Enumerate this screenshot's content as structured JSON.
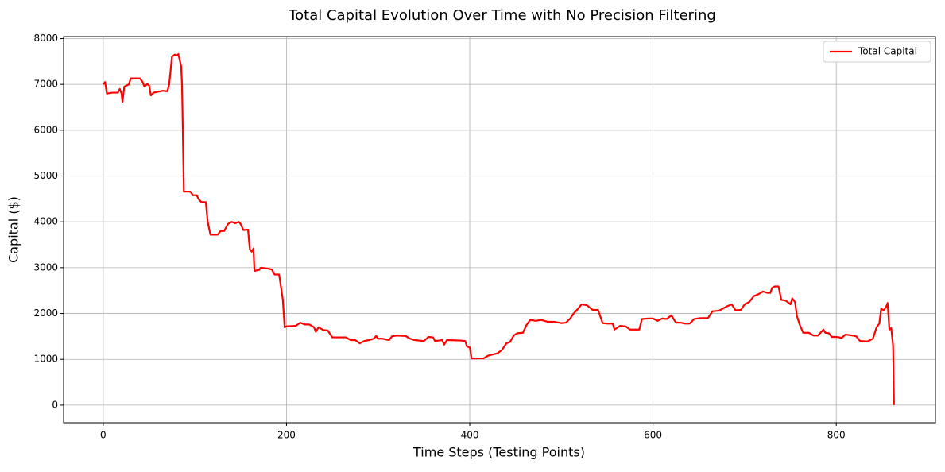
{
  "chart_data": {
    "type": "line",
    "title": "Total Capital Evolution Over Time with No Precision Filtering",
    "x_label": "Time Steps (Testing Points)",
    "y_label": "Capital ($)",
    "x": [
      0,
      2,
      4,
      10,
      16,
      18,
      20,
      21,
      23,
      28,
      30,
      40,
      43,
      45,
      48,
      50,
      52,
      55,
      60,
      65,
      70,
      72,
      75,
      78,
      80,
      82,
      85,
      86,
      88,
      95,
      98,
      102,
      104,
      107,
      112,
      114,
      117,
      125,
      128,
      132,
      136,
      140,
      144,
      148,
      150,
      153,
      158,
      160,
      162,
      164,
      165,
      170,
      172,
      180,
      184,
      187,
      192,
      196,
      198,
      200,
      210,
      215,
      220,
      225,
      230,
      232,
      235,
      240,
      245,
      250,
      258,
      265,
      270,
      275,
      280,
      285,
      290,
      295,
      298,
      300,
      305,
      312,
      315,
      320,
      330,
      335,
      340,
      350,
      355,
      360,
      362,
      370,
      372,
      375,
      390,
      395,
      397,
      400,
      402,
      415,
      420,
      430,
      435,
      440,
      444,
      448,
      452,
      458,
      462,
      466,
      472,
      478,
      485,
      492,
      500,
      505,
      510,
      513,
      518,
      522,
      528,
      534,
      540,
      545,
      550,
      556,
      558,
      564,
      570,
      575,
      585,
      588,
      595,
      600,
      605,
      610,
      615,
      620,
      625,
      630,
      635,
      640,
      645,
      652,
      660,
      665,
      672,
      680,
      686,
      690,
      696,
      700,
      705,
      710,
      715,
      720,
      725,
      728,
      730,
      733,
      737,
      740,
      745,
      750,
      752,
      755,
      757,
      760,
      764,
      770,
      775,
      780,
      786,
      788,
      792,
      795,
      800,
      806,
      810,
      818,
      822,
      826,
      834,
      840,
      844,
      847,
      849,
      852,
      855,
      856,
      858,
      860,
      862,
      863
    ],
    "series": [
      {
        "name": "Total Capital",
        "color": "#ff0000",
        "values": [
          7000,
          7050,
          6800,
          6820,
          6820,
          6900,
          6800,
          6620,
          6950,
          7000,
          7130,
          7130,
          7050,
          6950,
          7010,
          6980,
          6760,
          6820,
          6840,
          6860,
          6850,
          7000,
          7600,
          7650,
          7630,
          7660,
          7400,
          7000,
          4660,
          4660,
          4580,
          4580,
          4500,
          4430,
          4430,
          4000,
          3720,
          3720,
          3800,
          3800,
          3950,
          4000,
          3970,
          4000,
          3950,
          3820,
          3830,
          3400,
          3350,
          3420,
          2930,
          2950,
          3000,
          2980,
          2960,
          2850,
          2850,
          2300,
          1700,
          1720,
          1730,
          1800,
          1760,
          1760,
          1700,
          1600,
          1700,
          1640,
          1630,
          1480,
          1480,
          1480,
          1420,
          1420,
          1350,
          1400,
          1420,
          1450,
          1510,
          1450,
          1450,
          1420,
          1500,
          1520,
          1510,
          1450,
          1420,
          1400,
          1490,
          1480,
          1400,
          1420,
          1320,
          1420,
          1410,
          1400,
          1280,
          1260,
          1020,
          1020,
          1080,
          1130,
          1200,
          1350,
          1380,
          1520,
          1570,
          1580,
          1750,
          1860,
          1840,
          1860,
          1820,
          1820,
          1790,
          1800,
          1900,
          1990,
          2100,
          2200,
          2180,
          2080,
          2080,
          1790,
          1780,
          1780,
          1650,
          1730,
          1720,
          1650,
          1650,
          1880,
          1890,
          1890,
          1840,
          1890,
          1880,
          1960,
          1800,
          1800,
          1780,
          1780,
          1880,
          1900,
          1900,
          2050,
          2060,
          2150,
          2200,
          2070,
          2080,
          2200,
          2250,
          2380,
          2420,
          2480,
          2450,
          2450,
          2560,
          2590,
          2590,
          2300,
          2280,
          2200,
          2330,
          2250,
          1950,
          1760,
          1580,
          1580,
          1520,
          1520,
          1650,
          1580,
          1570,
          1490,
          1490,
          1470,
          1540,
          1520,
          1500,
          1400,
          1390,
          1450,
          1700,
          1780,
          2100,
          2070,
          2170,
          2230,
          1650,
          1680,
          1300,
          0
        ]
      }
    ],
    "xlim": [
      -43.25,
      908.25
    ],
    "ylim": [
      -383,
      8043
    ],
    "xticks": [
      0,
      200,
      400,
      600,
      800
    ],
    "yticks": [
      0,
      1000,
      2000,
      3000,
      4000,
      5000,
      6000,
      7000,
      8000
    ],
    "grid": true,
    "legend": "upper right"
  }
}
